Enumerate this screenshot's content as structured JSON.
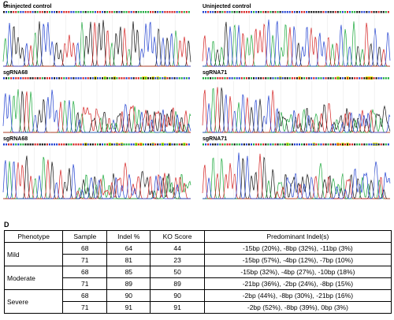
{
  "panel_c": {
    "label": "C",
    "traces": [
      {
        "label": "Uninjected control"
      },
      {
        "label": "Uninjected control"
      },
      {
        "label": "sgRNA68"
      },
      {
        "label": "sgRNA71"
      },
      {
        "label": "sgRNA68"
      },
      {
        "label": "sgRNA71"
      }
    ]
  },
  "panel_d": {
    "label": "D",
    "table": {
      "header": [
        "Phenotype",
        "Sample",
        "Indel %",
        "KO Score",
        "Predominant Indel(s)"
      ],
      "groups": [
        {
          "phenotype": "Mild",
          "rows": [
            [
              68,
              64,
              44,
              "-15bp (20%), -8bp (32%), -11bp (3%)"
            ],
            [
              71,
              81,
              23,
              "-15bp (57%), -4bp (12%), -7bp (10%)"
            ]
          ]
        },
        {
          "phenotype": "Moderate",
          "rows": [
            [
              68,
              85,
              50,
              "-15bp (32%), -4bp (27%), -10bp (18%)"
            ],
            [
              71,
              89,
              89,
              "-21bp (36%), -2bp (24%), -8bp (15%)"
            ]
          ]
        },
        {
          "phenotype": "Severe",
          "rows": [
            [
              68,
              90,
              90,
              "-2bp (44%), -8bp (30%), -21bp (16%)"
            ],
            [
              71,
              91,
              91,
              "-2bp (52%), -8bp (39%), 0bp (3%)"
            ]
          ]
        }
      ]
    }
  }
}
